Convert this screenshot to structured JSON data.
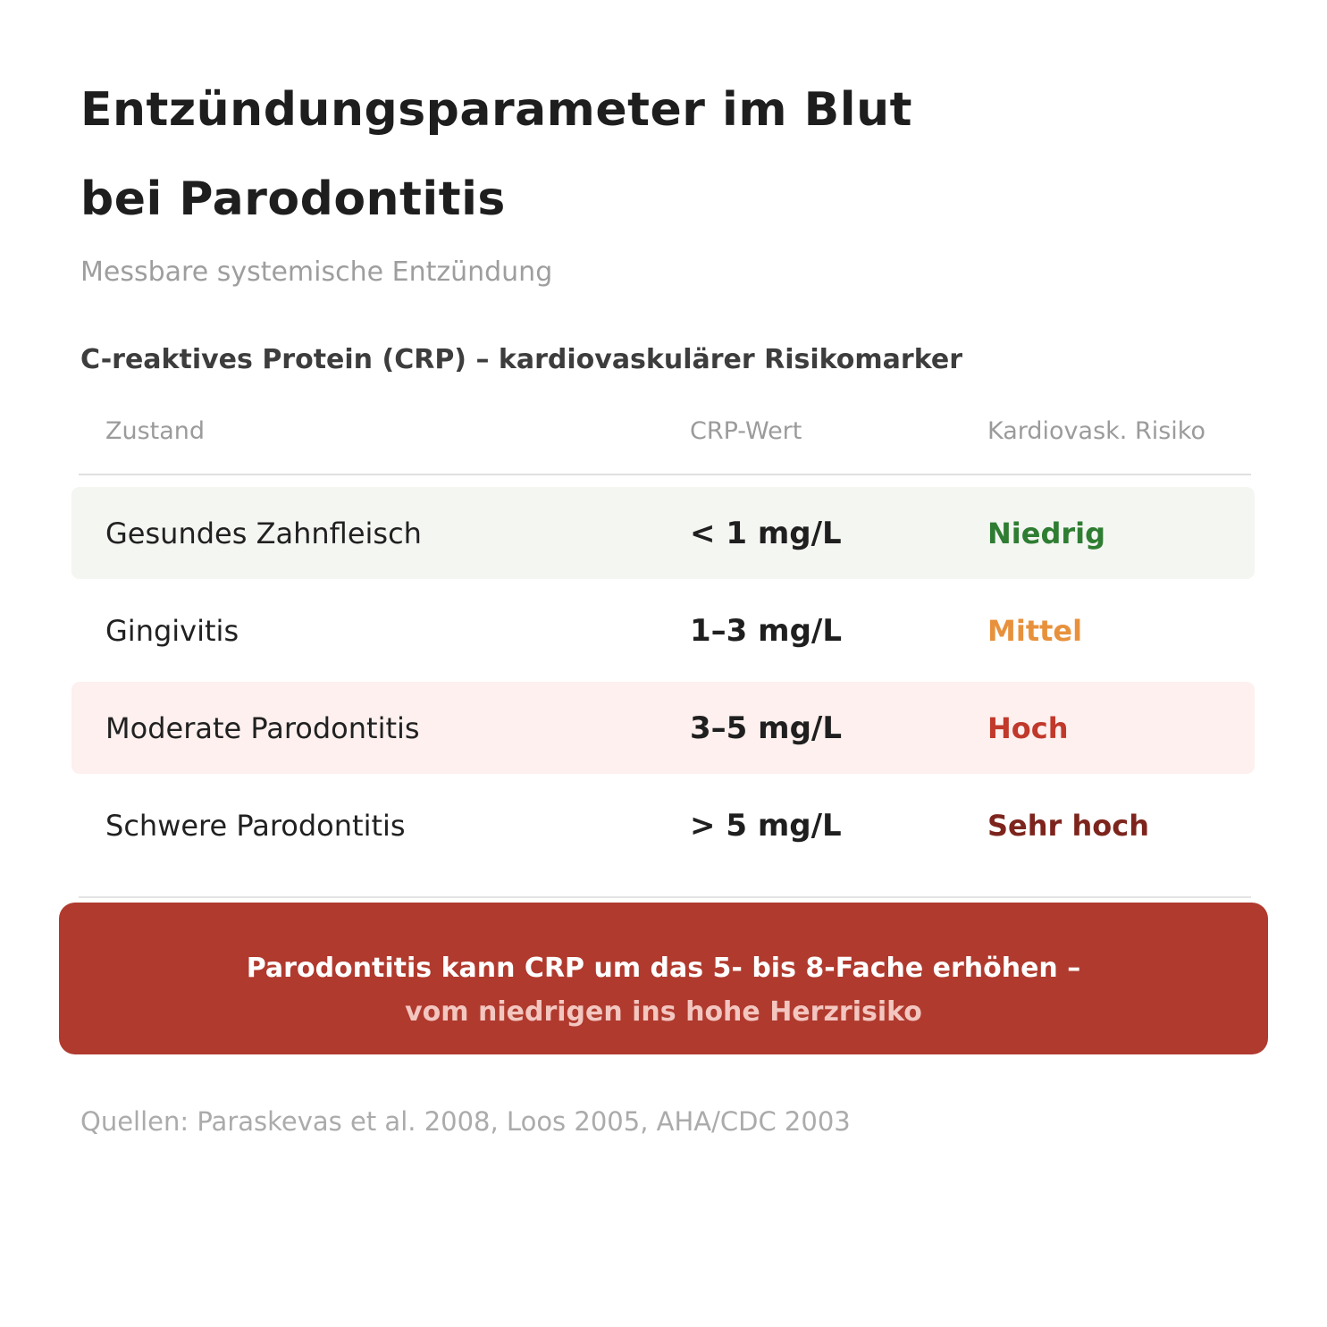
{
  "header": {
    "title_line1": "Entzündungsparameter im Blut",
    "title_line2": "bei Parodontitis",
    "subtitle": "Messbare systemische Entzündung"
  },
  "section": {
    "heading": "C-reaktives Protein (CRP) – kardiovaskulärer Risikomarker"
  },
  "table": {
    "columns": [
      "Zustand",
      "CRP-Wert",
      "Kardiovask. Risiko"
    ],
    "rows": [
      {
        "condition": "Gesundes Zahnfleisch",
        "crp": "< 1 mg/L",
        "risk": "Niedrig",
        "risk_color": "#2e7d32",
        "bg": "#f4f6f2"
      },
      {
        "condition": "Gingivitis",
        "crp": "1–3 mg/L",
        "risk": "Mittel",
        "risk_color": "#e8913c",
        "bg": "#ffffff"
      },
      {
        "condition": "Moderate Parodontitis",
        "crp": "3–5 mg/L",
        "risk": "Hoch",
        "risk_color": "#c0392b",
        "bg": "#fdf0ee"
      },
      {
        "condition": "Schwere Parodontitis",
        "crp": "> 5 mg/L",
        "risk": "Sehr hoch",
        "risk_color": "#7d251d",
        "bg": "#ffffff"
      }
    ]
  },
  "note": {
    "line1": "Parodontitis kann CRP um das 5- bis 8-Fache erhöhen –",
    "line2": "vom niedrigen ins hohe Herzrisiko",
    "bg_color": "#b03a2e",
    "line1_color": "#ffffff",
    "line2_color": "#f3c6c0"
  },
  "footer": {
    "sources": "Quellen: Paraskevas et al. 2008, Loos 2005, AHA/CDC 2003"
  }
}
